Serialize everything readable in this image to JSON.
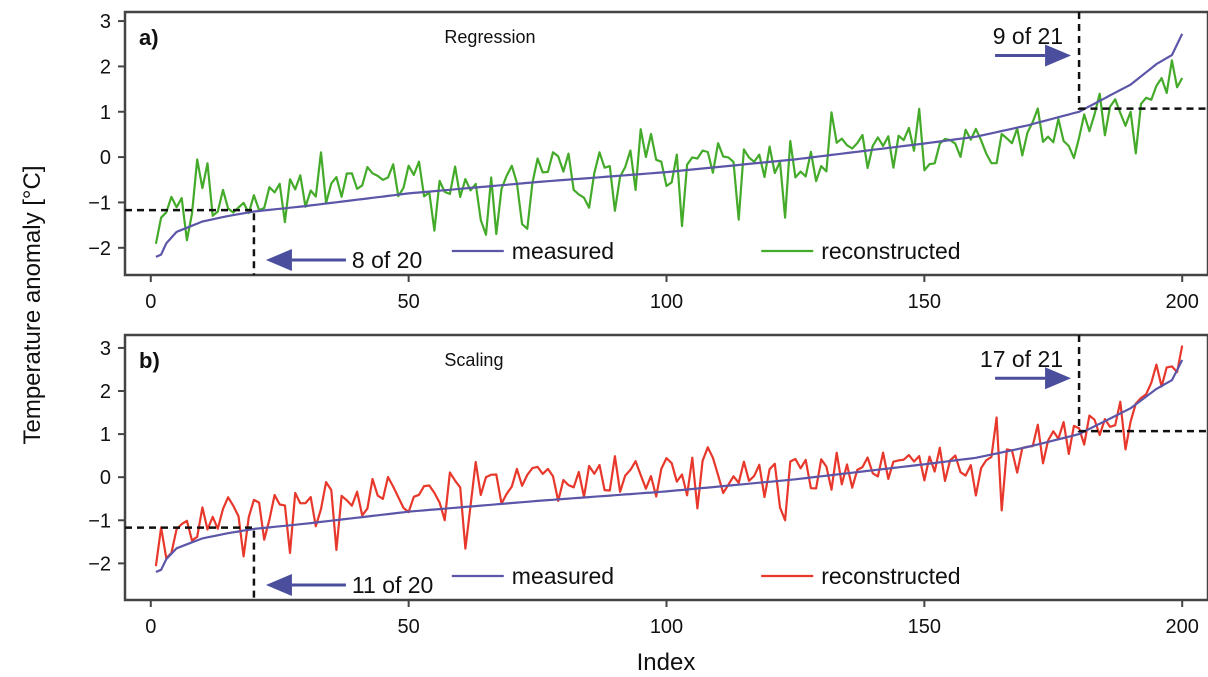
{
  "figure": {
    "ylabel": "Temperature anomaly [°C]",
    "xlabel": "Index"
  },
  "chart_data": [
    {
      "type": "line",
      "panel_label": "a)",
      "title": "Regression",
      "xlim": [
        -5,
        205
      ],
      "ylim": [
        -2.6,
        3.2
      ],
      "x_ticks": [
        0,
        50,
        100,
        150,
        200
      ],
      "y_ticks": [
        -2,
        -1,
        0,
        1,
        2,
        3
      ],
      "legend": {
        "placement": "bottom-center",
        "entries": [
          "measured",
          "reconstructed"
        ]
      },
      "series": [
        {
          "name": "measured",
          "color": "#5b56a8",
          "knots": [
            [
              1,
              -2.2
            ],
            [
              2,
              -2.15
            ],
            [
              3,
              -1.9
            ],
            [
              5,
              -1.65
            ],
            [
              10,
              -1.42
            ],
            [
              15,
              -1.3
            ],
            [
              20,
              -1.2
            ],
            [
              30,
              -1.08
            ],
            [
              50,
              -0.8
            ],
            [
              75,
              -0.55
            ],
            [
              100,
              -0.33
            ],
            [
              125,
              -0.05
            ],
            [
              150,
              0.3
            ],
            [
              160,
              0.45
            ],
            [
              170,
              0.7
            ],
            [
              180,
              1.0
            ],
            [
              190,
              1.6
            ],
            [
              195,
              2.05
            ],
            [
              198,
              2.25
            ],
            [
              200,
              2.72
            ]
          ]
        },
        {
          "name": "reconstructed",
          "color": "#44aa2a",
          "knots": [
            [
              1,
              -2.0
            ],
            [
              5,
              -1.1
            ],
            [
              10,
              -0.9
            ],
            [
              15,
              -1.1
            ],
            [
              20,
              -0.8
            ],
            [
              30,
              -0.7
            ],
            [
              50,
              -0.5
            ],
            [
              75,
              -0.35
            ],
            [
              100,
              -0.2
            ],
            [
              125,
              -0.05
            ],
            [
              150,
              0.15
            ],
            [
              170,
              0.35
            ],
            [
              180,
              0.6
            ],
            [
              190,
              1.2
            ],
            [
              195,
              1.4
            ],
            [
              200,
              2.1
            ]
          ]
        }
      ],
      "annotations": [
        {
          "text": "8 of 20",
          "threshold_index": 20,
          "threshold_value": -1.17,
          "side": "lower-left"
        },
        {
          "text": "9 of 21",
          "threshold_index": 180,
          "threshold_value": 1.07,
          "side": "upper-right"
        }
      ]
    },
    {
      "type": "line",
      "panel_label": "b)",
      "title": "Scaling",
      "xlim": [
        -5,
        205
      ],
      "ylim": [
        -2.85,
        3.3
      ],
      "x_ticks": [
        0,
        50,
        100,
        150,
        200
      ],
      "y_ticks": [
        -2,
        -1,
        0,
        1,
        2,
        3
      ],
      "legend": {
        "placement": "bottom-center",
        "entries": [
          "measured",
          "reconstructed"
        ]
      },
      "series": [
        {
          "name": "measured",
          "color": "#5b56a8",
          "knots": [
            [
              1,
              -2.2
            ],
            [
              2,
              -2.15
            ],
            [
              3,
              -1.9
            ],
            [
              5,
              -1.65
            ],
            [
              10,
              -1.42
            ],
            [
              15,
              -1.3
            ],
            [
              20,
              -1.2
            ],
            [
              30,
              -1.08
            ],
            [
              50,
              -0.8
            ],
            [
              75,
              -0.55
            ],
            [
              100,
              -0.33
            ],
            [
              125,
              -0.05
            ],
            [
              150,
              0.3
            ],
            [
              160,
              0.45
            ],
            [
              170,
              0.7
            ],
            [
              180,
              1.0
            ],
            [
              190,
              1.6
            ],
            [
              195,
              2.05
            ],
            [
              198,
              2.25
            ],
            [
              200,
              2.72
            ]
          ]
        },
        {
          "name": "reconstructed",
          "color": "#e8372b",
          "knots": [
            [
              1,
              -2.3
            ],
            [
              5,
              -1.3
            ],
            [
              10,
              -1.0
            ],
            [
              20,
              -0.7
            ],
            [
              30,
              -0.6
            ],
            [
              50,
              -0.35
            ],
            [
              75,
              -0.2
            ],
            [
              100,
              0.0
            ],
            [
              125,
              0.1
            ],
            [
              150,
              0.25
            ],
            [
              170,
              0.5
            ],
            [
              180,
              1.0
            ],
            [
              190,
              1.5
            ],
            [
              195,
              2.3
            ],
            [
              200,
              2.7
            ]
          ]
        }
      ],
      "annotations": [
        {
          "text": "11 of 20",
          "threshold_index": 20,
          "threshold_value": -1.17,
          "side": "lower-left"
        },
        {
          "text": "17 of 21",
          "threshold_index": 180,
          "threshold_value": 1.07,
          "side": "upper-right"
        }
      ]
    }
  ]
}
